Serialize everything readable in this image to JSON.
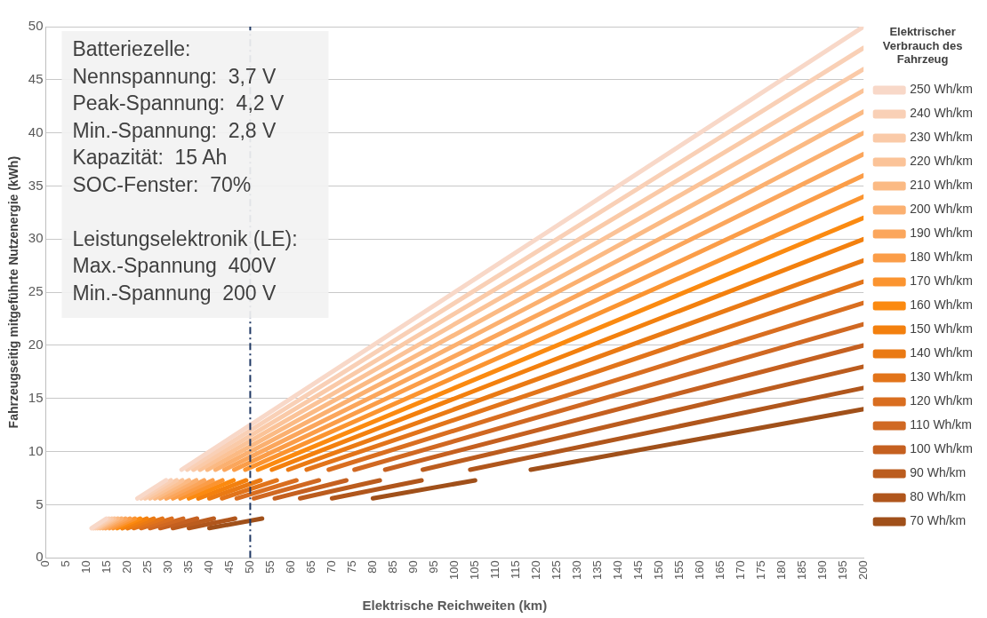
{
  "chart_data": {
    "type": "line",
    "xlabel": "Elektrische Reichweiten (km)",
    "ylabel": "Fahrzeugseitig mitgeführte Nutzenergie (kWh)",
    "legend_title": "Elektrischer Verbrauch des Fahrzeug",
    "legend": "right",
    "grid": "y",
    "marker": "none",
    "line_style": "solid",
    "xlim": [
      0,
      200
    ],
    "xticks": [
      0,
      5,
      10,
      15,
      20,
      25,
      30,
      35,
      40,
      45,
      50,
      55,
      60,
      65,
      70,
      75,
      80,
      85,
      90,
      95,
      100,
      105,
      110,
      115,
      120,
      125,
      130,
      135,
      140,
      145,
      150,
      155,
      160,
      165,
      170,
      175,
      180,
      185,
      190,
      195,
      200
    ],
    "ylim": [
      0,
      50
    ],
    "yticks": [
      0,
      5,
      10,
      15,
      20,
      25,
      30,
      35,
      40,
      45,
      50
    ],
    "ref_lines": [
      {
        "axis": "x",
        "value": 50,
        "color": "#1f3864",
        "line_style": "dashdot"
      }
    ],
    "annotations": [
      "Batteriezelle:",
      "Nennspannung:  3,7 V",
      "Peak-Spannung:  4,2 V",
      "Min.-Spannung:  2,8 V",
      "Kapazität:  15 Ah",
      "SOC-Fenster:  70%",
      "Leistungselektronik (LE):",
      "Max.-Spannung  400V",
      "Min.-Spannung  200 V"
    ],
    "series": [
      {
        "name": "250 Wh/km",
        "color": "#f8d8c8",
        "x": [
          11.2,
          14.8,
          null,
          22.4,
          29.4,
          null,
          33.2,
          200
        ],
        "values": [
          2.8,
          3.7,
          null,
          5.6,
          7.3,
          null,
          8.3,
          50
        ]
      },
      {
        "name": "240 Wh/km",
        "color": "#f9d0b6",
        "x": [
          11.7,
          15.4,
          null,
          23.3,
          30.6,
          null,
          34.6,
          200
        ],
        "values": [
          2.8,
          3.7,
          null,
          5.6,
          7.3,
          null,
          8.3,
          48
        ]
      },
      {
        "name": "230 Wh/km",
        "color": "#facaa8",
        "x": [
          12.2,
          16.1,
          null,
          24.3,
          32,
          null,
          36.1,
          200
        ],
        "values": [
          2.8,
          3.7,
          null,
          5.6,
          7.3,
          null,
          8.3,
          46
        ]
      },
      {
        "name": "220 Wh/km",
        "color": "#fbc398",
        "x": [
          12.7,
          16.8,
          null,
          25.5,
          33.4,
          null,
          37.7,
          200
        ],
        "values": [
          2.8,
          3.7,
          null,
          5.6,
          7.3,
          null,
          8.3,
          44
        ]
      },
      {
        "name": "210 Wh/km",
        "color": "#fbba84",
        "x": [
          13.3,
          17.6,
          null,
          26.7,
          35,
          null,
          39.5,
          200
        ],
        "values": [
          2.8,
          3.7,
          null,
          5.6,
          7.3,
          null,
          8.3,
          42
        ]
      },
      {
        "name": "200 Wh/km",
        "color": "#fbb070",
        "x": [
          14,
          18.5,
          null,
          28,
          36.8,
          null,
          41.5,
          200
        ],
        "values": [
          2.8,
          3.7,
          null,
          5.6,
          7.3,
          null,
          8.3,
          40
        ]
      },
      {
        "name": "190 Wh/km",
        "color": "#fba65c",
        "x": [
          14.7,
          19.5,
          null,
          29.5,
          38.7,
          null,
          43.7,
          200
        ],
        "values": [
          2.8,
          3.7,
          null,
          5.6,
          7.3,
          null,
          8.3,
          38
        ]
      },
      {
        "name": "180 Wh/km",
        "color": "#fb9d48",
        "x": [
          15.6,
          20.6,
          null,
          31.1,
          40.8,
          null,
          46.1,
          200
        ],
        "values": [
          2.8,
          3.7,
          null,
          5.6,
          7.3,
          null,
          8.3,
          36
        ]
      },
      {
        "name": "170 Wh/km",
        "color": "#fb9430",
        "x": [
          16.5,
          21.8,
          null,
          32.9,
          43.2,
          null,
          48.8,
          200
        ],
        "values": [
          2.8,
          3.7,
          null,
          5.6,
          7.3,
          null,
          8.3,
          34
        ]
      },
      {
        "name": "160 Wh/km",
        "color": "#fb8a10",
        "x": [
          17.5,
          23.1,
          null,
          35,
          45.9,
          null,
          51.9,
          200
        ],
        "values": [
          2.8,
          3.7,
          null,
          5.6,
          7.3,
          null,
          8.3,
          32
        ]
      },
      {
        "name": "150 Wh/km",
        "color": "#f3800e",
        "x": [
          18.7,
          24.7,
          null,
          37.3,
          49,
          null,
          55.3,
          200
        ],
        "values": [
          2.8,
          3.7,
          null,
          5.6,
          7.3,
          null,
          8.3,
          30
        ]
      },
      {
        "name": "140 Wh/km",
        "color": "#ea7a14",
        "x": [
          20,
          26.4,
          null,
          40,
          52.5,
          null,
          59.3,
          200
        ],
        "values": [
          2.8,
          3.7,
          null,
          5.6,
          7.3,
          null,
          8.3,
          28
        ]
      },
      {
        "name": "130 Wh/km",
        "color": "#e2741a",
        "x": [
          21.5,
          28.5,
          null,
          43.1,
          56.5,
          null,
          63.8,
          200
        ],
        "values": [
          2.8,
          3.7,
          null,
          5.6,
          7.3,
          null,
          8.3,
          26
        ]
      },
      {
        "name": "120 Wh/km",
        "color": "#d96e20",
        "x": [
          23.3,
          30.8,
          null,
          46.7,
          61.3,
          null,
          69.2,
          200
        ],
        "values": [
          2.8,
          3.7,
          null,
          5.6,
          7.3,
          null,
          8.3,
          24
        ]
      },
      {
        "name": "110 Wh/km",
        "color": "#d06822",
        "x": [
          25.5,
          33.6,
          null,
          50.9,
          66.8,
          null,
          75.5,
          200
        ],
        "values": [
          2.8,
          3.7,
          null,
          5.6,
          7.3,
          null,
          8.3,
          22
        ]
      },
      {
        "name": "100 Wh/km",
        "color": "#c56020",
        "x": [
          28,
          37,
          null,
          56,
          73.5,
          null,
          83,
          200
        ],
        "values": [
          2.8,
          3.7,
          null,
          5.6,
          7.3,
          null,
          8.3,
          20
        ]
      },
      {
        "name": "90 Wh/km",
        "color": "#bb5c1e",
        "x": [
          31.1,
          41.1,
          null,
          62.2,
          81.7,
          null,
          92.2,
          200
        ],
        "values": [
          2.8,
          3.7,
          null,
          5.6,
          7.3,
          null,
          8.3,
          18
        ]
      },
      {
        "name": "80 Wh/km",
        "color": "#b0561c",
        "x": [
          35,
          46.3,
          null,
          70,
          91.9,
          null,
          103.8,
          200
        ],
        "values": [
          2.8,
          3.7,
          null,
          5.6,
          7.3,
          null,
          8.3,
          16
        ]
      },
      {
        "name": "70 Wh/km",
        "color": "#a0501a",
        "x": [
          40,
          52.9,
          null,
          80,
          105,
          null,
          118.6,
          200
        ],
        "values": [
          2.8,
          3.7,
          null,
          5.6,
          7.3,
          null,
          8.3,
          14
        ]
      }
    ]
  }
}
